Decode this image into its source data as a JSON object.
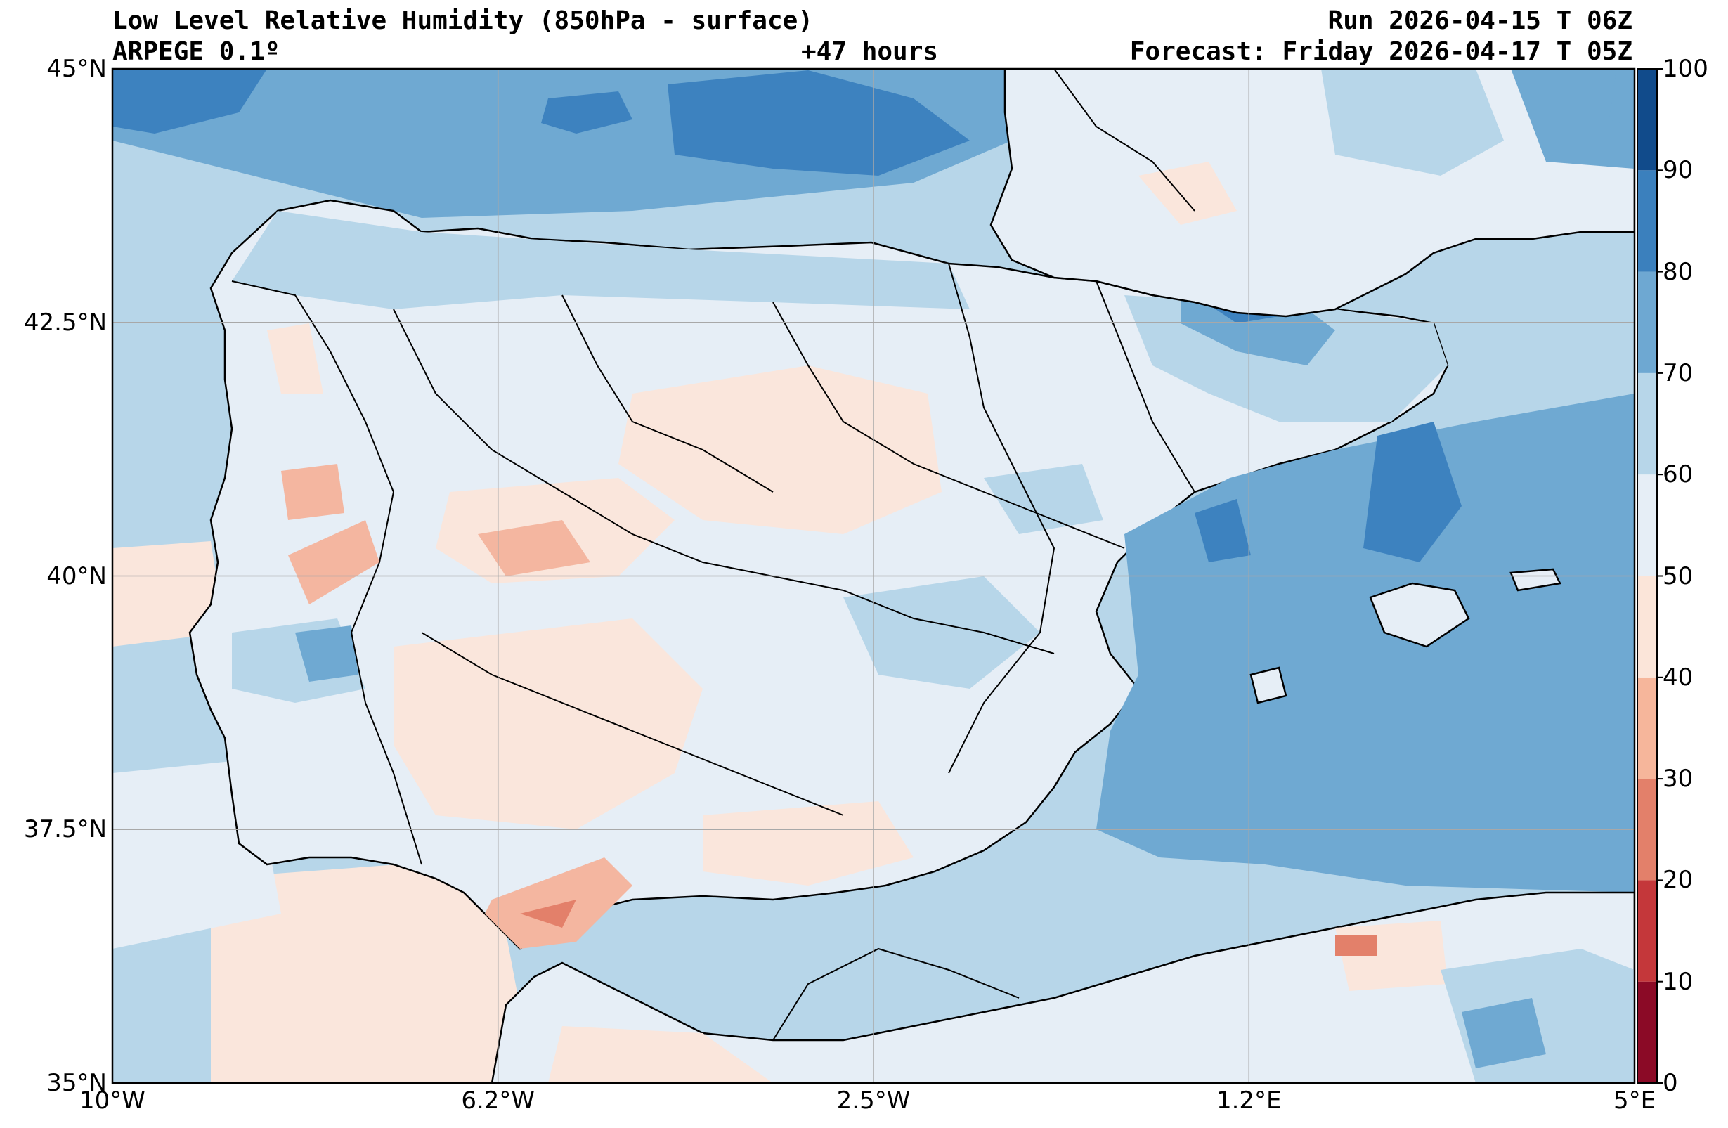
{
  "header": {
    "title_left": "Low Level Relative Humidity (850hPa - surface)",
    "subtitle_left": "ARPEGE 0.1º",
    "center": "+47 hours",
    "run": "Run 2026-04-15 T 06Z",
    "forecast": "Forecast: Friday 2026-04-17 T 05Z"
  },
  "map": {
    "lon_range": [
      -10,
      5
    ],
    "lat_range": [
      35,
      45
    ],
    "x_ticks": [
      {
        "value": -10,
        "label": "10°W"
      },
      {
        "value": -6.2,
        "label": "6.2°W"
      },
      {
        "value": -2.5,
        "label": "2.5°W"
      },
      {
        "value": 1.2,
        "label": "1.2°E"
      },
      {
        "value": 5,
        "label": "5°E"
      }
    ],
    "y_ticks": [
      {
        "value": 45,
        "label": "45°N"
      },
      {
        "value": 42.5,
        "label": "42.5°N"
      },
      {
        "value": 40,
        "label": "40°N"
      },
      {
        "value": 37.5,
        "label": "37.5°N"
      },
      {
        "value": 35,
        "label": "35°N"
      }
    ],
    "gridlines": true,
    "colors": {
      "sea_base": "#b7d6e9",
      "land_base": "#e6eef6",
      "dry": "#fae6dc",
      "drier": "#f4b6a0",
      "moist": "#6fa9d2",
      "wet": "#3d82bf",
      "coast": "#000000"
    }
  },
  "colorbar": {
    "levels": [
      {
        "label": "0"
      },
      {
        "label": "10"
      },
      {
        "label": "20"
      },
      {
        "label": "30"
      },
      {
        "label": "40"
      },
      {
        "label": "50"
      },
      {
        "label": "60"
      },
      {
        "label": "70"
      },
      {
        "label": "80"
      },
      {
        "label": "90"
      },
      {
        "label": "100"
      }
    ],
    "band_colors": [
      "#8b0a26",
      "#c4373a",
      "#e3806a",
      "#f6b69b",
      "#fbe5d9",
      "#e6eef6",
      "#b7d6e9",
      "#6ea8d2",
      "#3b80bd",
      "#114b8b"
    ]
  }
}
